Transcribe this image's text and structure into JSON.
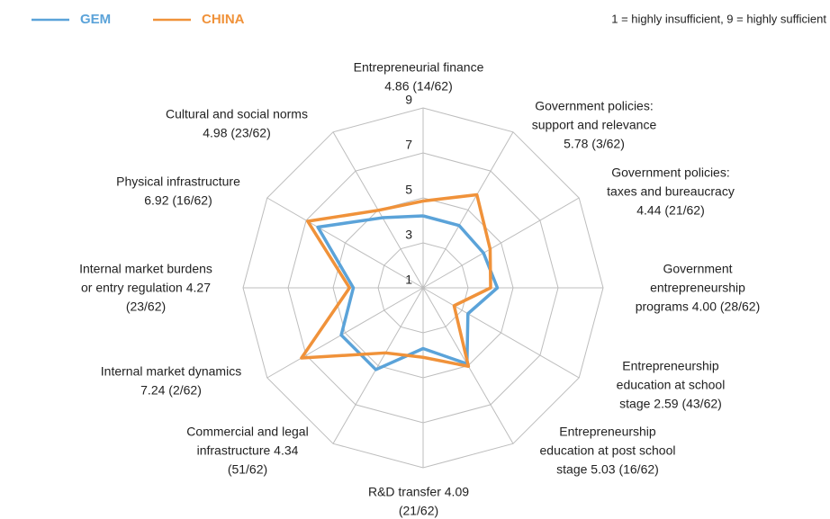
{
  "chart_data": {
    "type": "radar",
    "note": "1 = highly insufficient,  9 = highly sufficient",
    "categories": [
      [
        "Entrepreneurial finance",
        "4.86 (14/62)"
      ],
      [
        "Government policies:",
        "support and relevance",
        "5.78 (3/62)"
      ],
      [
        "Government policies:",
        "taxes and bureaucracy",
        "4.44 (21/62)"
      ],
      [
        "Government",
        "entrepreneurship",
        "programs 4.00 (28/62)"
      ],
      [
        "Entrepreneurship",
        "education at school",
        "stage 2.59 (43/62)"
      ],
      [
        "Entrepreneurship",
        "education at post school",
        "stage 5.03 (16/62)"
      ],
      [
        "R&D transfer 4.09",
        "(21/62)"
      ],
      [
        "Commercial and legal",
        "infrastructure 4.34",
        "(51/62)"
      ],
      [
        "Internal market dynamics",
        "7.24 (2/62)"
      ],
      [
        "Internal market burdens",
        "or entry regulation 4.27",
        "(23/62)"
      ],
      [
        "Physical infrastructure",
        "6.92 (16/62)"
      ],
      [
        "Cultural and social norms",
        "4.98 (23/62)"
      ]
    ],
    "series": [
      {
        "name": "GEM",
        "color": "#5ba3d9",
        "values": [
          4.2,
          4.2,
          4.1,
          4.3,
          3.3,
          4.9,
          3.7,
          5.2,
          5.2,
          4.1,
          6.4,
          4.6
        ]
      },
      {
        "name": "CHINA",
        "color": "#f0923a",
        "values": [
          4.86,
          5.78,
          4.44,
          4.0,
          2.59,
          5.03,
          4.09,
          4.34,
          7.24,
          4.27,
          6.92,
          4.98
        ]
      }
    ],
    "ylim": [
      1,
      9
    ],
    "yticks": [
      1,
      3,
      5,
      7,
      9
    ],
    "grid": true
  }
}
